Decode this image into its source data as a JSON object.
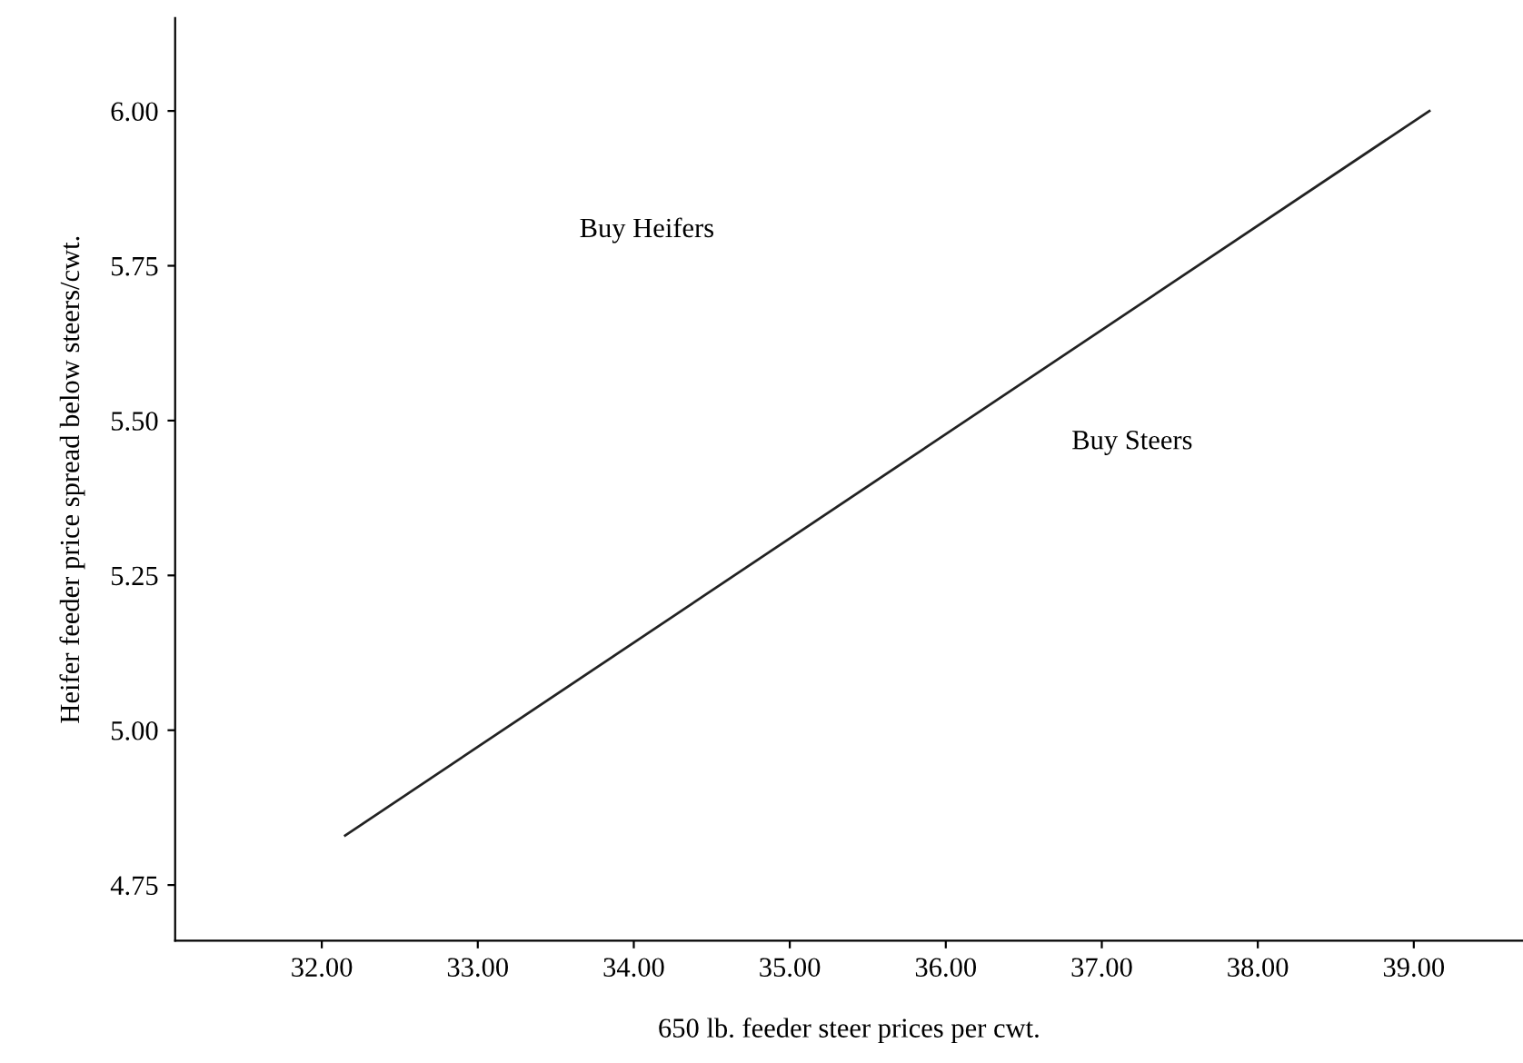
{
  "chart_data": {
    "type": "line",
    "xlabel": "650 lb. feeder steer prices per cwt.",
    "ylabel": "Heifer feeder price spread below steers/cwt.",
    "x": [
      32.15,
      39.1
    ],
    "series": [
      {
        "color": "#222222",
        "values": [
          4.83,
          6.0
        ]
      }
    ],
    "xlim": [
      31.06,
      39.7
    ],
    "ylim": [
      4.66,
      6.15
    ],
    "xticks": [
      {
        "value": 32,
        "label": "32.00"
      },
      {
        "value": 33,
        "label": "33.00"
      },
      {
        "value": 34,
        "label": "34.00"
      },
      {
        "value": 35,
        "label": "35.00"
      },
      {
        "value": 36,
        "label": "36.00"
      },
      {
        "value": 37,
        "label": "37.00"
      },
      {
        "value": 38,
        "label": "38.00"
      },
      {
        "value": 39,
        "label": "39.00"
      }
    ],
    "yticks": [
      {
        "value": 4.75,
        "label": "4.75"
      },
      {
        "value": 5.0,
        "label": "5.00"
      },
      {
        "value": 5.25,
        "label": "5.25"
      },
      {
        "value": 5.5,
        "label": "5.50"
      },
      {
        "value": 5.75,
        "label": "5.75"
      },
      {
        "value": 6.0,
        "label": "6.00"
      }
    ],
    "annotations": [
      "Buy Heifers",
      "Buy Steers"
    ],
    "grid": false,
    "legend": false,
    "marker": "none",
    "line_style": "solid"
  }
}
